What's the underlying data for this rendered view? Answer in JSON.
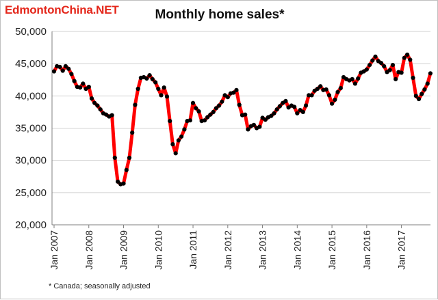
{
  "watermark": "EdmontonChina.NET",
  "footnote": "* Canada; seasonally adjusted",
  "chart_data": {
    "type": "line",
    "title": "Monthly home sales*",
    "xlabel": "",
    "ylabel": "",
    "ylim": [
      20000,
      50000
    ],
    "yticks": [
      20000,
      25000,
      30000,
      35000,
      40000,
      45000,
      50000
    ],
    "ytick_labels": [
      "20,000",
      "25,000",
      "30,000",
      "35,000",
      "40,000",
      "45,000",
      "50,000"
    ],
    "xticks": [
      "Jan 2007",
      "Jan 2008",
      "Jan 2009",
      "Jan 2010",
      "Jan 2011",
      "Jan 2012",
      "Jan 2013",
      "Jan 2014",
      "Jan 2015",
      "Jan 2016",
      "Jan 2017"
    ],
    "grid": true,
    "line_color": "#ff0000",
    "marker_color": "#000000",
    "series": [
      {
        "x": [
          "2007-01",
          "2007-02",
          "2007-03",
          "2007-04",
          "2007-05",
          "2007-06",
          "2007-07",
          "2007-08",
          "2007-09",
          "2007-10",
          "2007-11",
          "2007-12",
          "2008-01",
          "2008-02",
          "2008-03",
          "2008-04",
          "2008-05",
          "2008-06",
          "2008-07",
          "2008-08",
          "2008-09",
          "2008-10",
          "2008-11",
          "2008-12",
          "2009-01",
          "2009-02",
          "2009-03",
          "2009-04",
          "2009-05",
          "2009-06",
          "2009-07",
          "2009-08",
          "2009-09",
          "2009-10",
          "2009-11",
          "2009-12",
          "2010-01",
          "2010-02",
          "2010-03",
          "2010-04",
          "2010-05",
          "2010-06",
          "2010-07",
          "2010-08",
          "2010-09",
          "2010-10",
          "2010-11",
          "2010-12",
          "2011-01",
          "2011-02",
          "2011-03",
          "2011-04",
          "2011-05",
          "2011-06",
          "2011-07",
          "2011-08",
          "2011-09",
          "2011-10",
          "2011-11",
          "2011-12",
          "2012-01",
          "2012-02",
          "2012-03",
          "2012-04",
          "2012-05",
          "2012-06",
          "2012-07",
          "2012-08",
          "2012-09",
          "2012-10",
          "2012-11",
          "2012-12",
          "2013-01",
          "2013-02",
          "2013-03",
          "2013-04",
          "2013-05",
          "2013-06",
          "2013-07",
          "2013-08",
          "2013-09",
          "2013-10",
          "2013-11",
          "2013-12",
          "2014-01",
          "2014-02",
          "2014-03",
          "2014-04",
          "2014-05",
          "2014-06",
          "2014-07",
          "2014-08",
          "2014-09",
          "2014-10",
          "2014-11",
          "2014-12",
          "2015-01",
          "2015-02",
          "2015-03",
          "2015-04",
          "2015-05",
          "2015-06",
          "2015-07",
          "2015-08",
          "2015-09",
          "2015-10",
          "2015-11",
          "2015-12",
          "2016-01",
          "2016-02",
          "2016-03",
          "2016-04",
          "2016-05",
          "2016-06",
          "2016-07",
          "2016-08",
          "2016-09",
          "2016-10",
          "2016-11",
          "2016-12",
          "2017-01",
          "2017-02",
          "2017-03",
          "2017-04",
          "2017-05",
          "2017-06",
          "2017-07",
          "2017-08",
          "2017-09",
          "2017-10",
          "2017-11"
        ],
        "values": [
          43800,
          44600,
          44500,
          43900,
          44600,
          44200,
          43400,
          42300,
          41400,
          41300,
          41900,
          41100,
          41400,
          39600,
          38900,
          38500,
          37900,
          37300,
          37100,
          36800,
          37000,
          30400,
          26700,
          26300,
          26400,
          28500,
          30400,
          34300,
          38600,
          41100,
          42800,
          42900,
          42700,
          43200,
          42600,
          42100,
          41100,
          40100,
          41300,
          39900,
          36100,
          32500,
          31100,
          33100,
          33700,
          34800,
          36100,
          36200,
          38900,
          38100,
          37600,
          36100,
          36200,
          36700,
          37100,
          37500,
          38100,
          38500,
          39100,
          40100,
          39800,
          40400,
          40500,
          40900,
          38600,
          37000,
          37100,
          34800,
          35300,
          35500,
          35000,
          35200,
          36600,
          36300,
          36700,
          36900,
          37300,
          37900,
          38400,
          38900,
          39200,
          38200,
          38500,
          38300,
          37300,
          37800,
          37500,
          38500,
          40100,
          40100,
          40800,
          41100,
          41500,
          40900,
          41000,
          40100,
          38800,
          39400,
          40600,
          41200,
          42900,
          42600,
          42400,
          42600,
          41900,
          42700,
          43600,
          43800,
          44100,
          44800,
          45500,
          46100,
          45400,
          45100,
          44600,
          43700,
          44000,
          44800,
          42600,
          43700,
          43600,
          45900,
          46400,
          45600,
          42800,
          40000,
          39500,
          40300,
          41000,
          41900,
          43500
        ]
      }
    ]
  }
}
